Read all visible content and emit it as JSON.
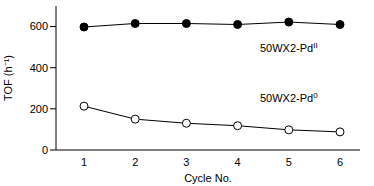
{
  "chart_data": {
    "type": "line",
    "x_label": "Cycle No.",
    "y_label": "TOF (h⁻¹)",
    "categories": [
      "1",
      "2",
      "3",
      "4",
      "5",
      "6"
    ],
    "series": [
      {
        "name": "50WX2-PdII",
        "color": "#000000",
        "marker": "filled_circle",
        "values": [
          598,
          615,
          615,
          610,
          622,
          610
        ]
      },
      {
        "name": "50WX2-Pd0",
        "color": "#000000",
        "marker": "open_circle",
        "values": [
          213,
          150,
          130,
          118,
          98,
          88
        ]
      }
    ],
    "ylim": [
      0,
      700
    ],
    "yticks": [
      0,
      200,
      400,
      600
    ],
    "grid": false
  }
}
